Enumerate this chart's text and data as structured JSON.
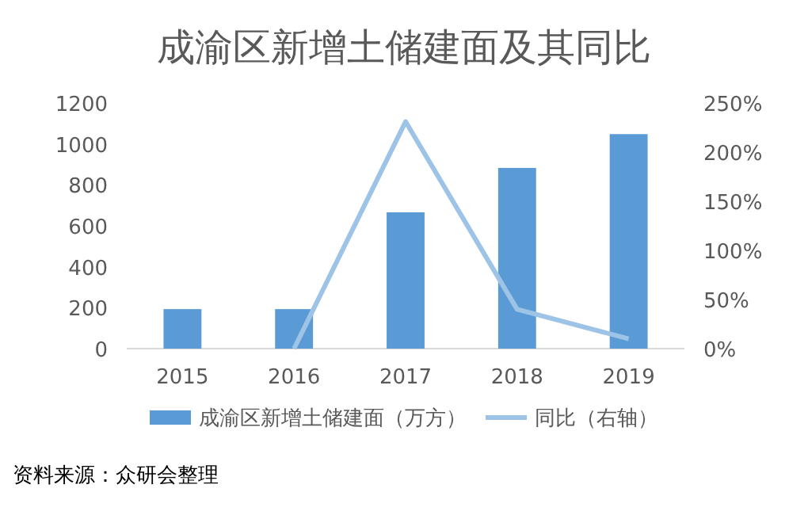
{
  "chart_data": {
    "type": "bar",
    "title": "成渝区新增土储建面及其同比",
    "categories": [
      "2015",
      "2016",
      "2017",
      "2018",
      "2019"
    ],
    "series": [
      {
        "name": "成渝区新增土储建面（万方）",
        "color": "#5b9bd5",
        "values": [
          193,
          193,
          666,
          883,
          1048
        ]
      },
      {
        "name": "同比（右轴）",
        "color": "#9dc3e6",
        "type": "line",
        "axis": "y2",
        "values": [
          null,
          0,
          231,
          40,
          10
        ]
      }
    ],
    "ylim": [
      0,
      1200
    ],
    "yticks": [
      0,
      200,
      400,
      600,
      800,
      1000,
      1200
    ],
    "y2lim": [
      0,
      250
    ],
    "y2ticks": [
      {
        "value": 0,
        "label": "0%"
      },
      {
        "value": 50,
        "label": "50%"
      },
      {
        "value": 100,
        "label": "100%"
      },
      {
        "value": 150,
        "label": "150%"
      },
      {
        "value": 200,
        "label": "200%"
      },
      {
        "value": 250,
        "label": "250%"
      }
    ],
    "grid": false,
    "legend": "bottom",
    "marker": "none",
    "annotations": [
      "资料来源：众研会整理"
    ]
  }
}
